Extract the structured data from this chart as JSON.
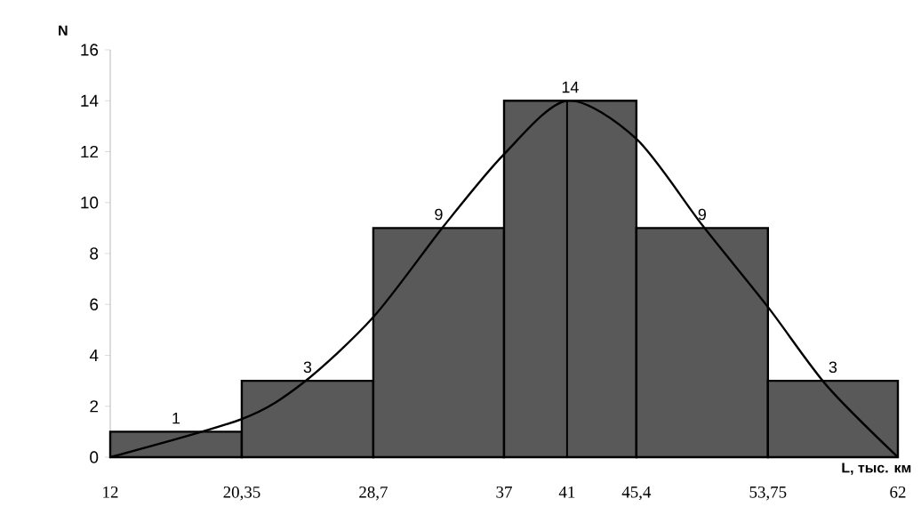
{
  "chart_data": {
    "type": "histogram",
    "bins": [
      12,
      20.35,
      28.7,
      37,
      45.4,
      53.75,
      62
    ],
    "values": [
      1,
      3,
      9,
      14,
      9,
      3
    ],
    "color": "#595959",
    "value_labels": [
      "1",
      "3",
      "9",
      "14",
      "9",
      "3"
    ],
    "series": [
      {
        "type": "line",
        "color": "#000000",
        "x": [
          12,
          20.35,
          24.2,
          28.7,
          33.2,
          37,
          41,
          45.4,
          49.6,
          53.75,
          57.5,
          62
        ],
        "values": [
          0,
          1.5,
          2.9,
          5.5,
          9.1,
          11.9,
          14,
          12.5,
          9.1,
          5.9,
          2.8,
          0
        ]
      }
    ],
    "ref_lines": [
      {
        "axis": "x",
        "value": 41,
        "color": "#000000"
      }
    ],
    "xlabel": "L, тыс. км",
    "ylabel": "N",
    "xlim": [
      12,
      62
    ],
    "ylim": [
      0,
      16
    ],
    "xticks": [
      12,
      {
        "value": 20.35,
        "label": "20,35"
      },
      {
        "value": 28.7,
        "label": "28,7"
      },
      37,
      41,
      {
        "value": 45.4,
        "label": "45,4"
      },
      {
        "value": 53.75,
        "label": "53,75"
      },
      62
    ],
    "yticks": [
      0,
      2,
      4,
      6,
      8,
      10,
      12,
      14,
      16
    ]
  }
}
